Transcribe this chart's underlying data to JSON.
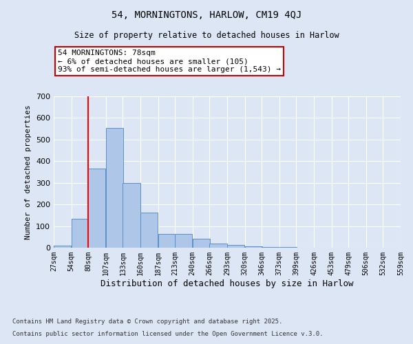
{
  "title1": "54, MORNINGTONS, HARLOW, CM19 4QJ",
  "title2": "Size of property relative to detached houses in Harlow",
  "xlabel": "Distribution of detached houses by size in Harlow",
  "ylabel": "Number of detached properties",
  "bar_color": "#aec6e8",
  "bar_edge_color": "#5b8fc9",
  "background_color": "#dce6f5",
  "plot_bg_color": "#dce6f5",
  "grid_color": "#ffffff",
  "red_line_x": 80,
  "bin_edges": [
    27,
    54,
    80,
    107,
    133,
    160,
    187,
    213,
    240,
    266,
    293,
    320,
    346,
    373,
    399,
    426,
    453,
    479,
    506,
    532,
    559
  ],
  "bar_heights": [
    8,
    135,
    365,
    555,
    298,
    162,
    65,
    65,
    42,
    20,
    12,
    6,
    3,
    2,
    0,
    0,
    0,
    0,
    0,
    0
  ],
  "annotation_text": "54 MORNINGTONS: 78sqm\n← 6% of detached houses are smaller (105)\n93% of semi-detached houses are larger (1,543) →",
  "annotation_box_color": "#ffffff",
  "annotation_box_edge": "#cc0000",
  "footnote1": "Contains HM Land Registry data © Crown copyright and database right 2025.",
  "footnote2": "Contains public sector information licensed under the Open Government Licence v.3.0.",
  "ylim": [
    0,
    700
  ],
  "yticks": [
    0,
    100,
    200,
    300,
    400,
    500,
    600,
    700
  ]
}
